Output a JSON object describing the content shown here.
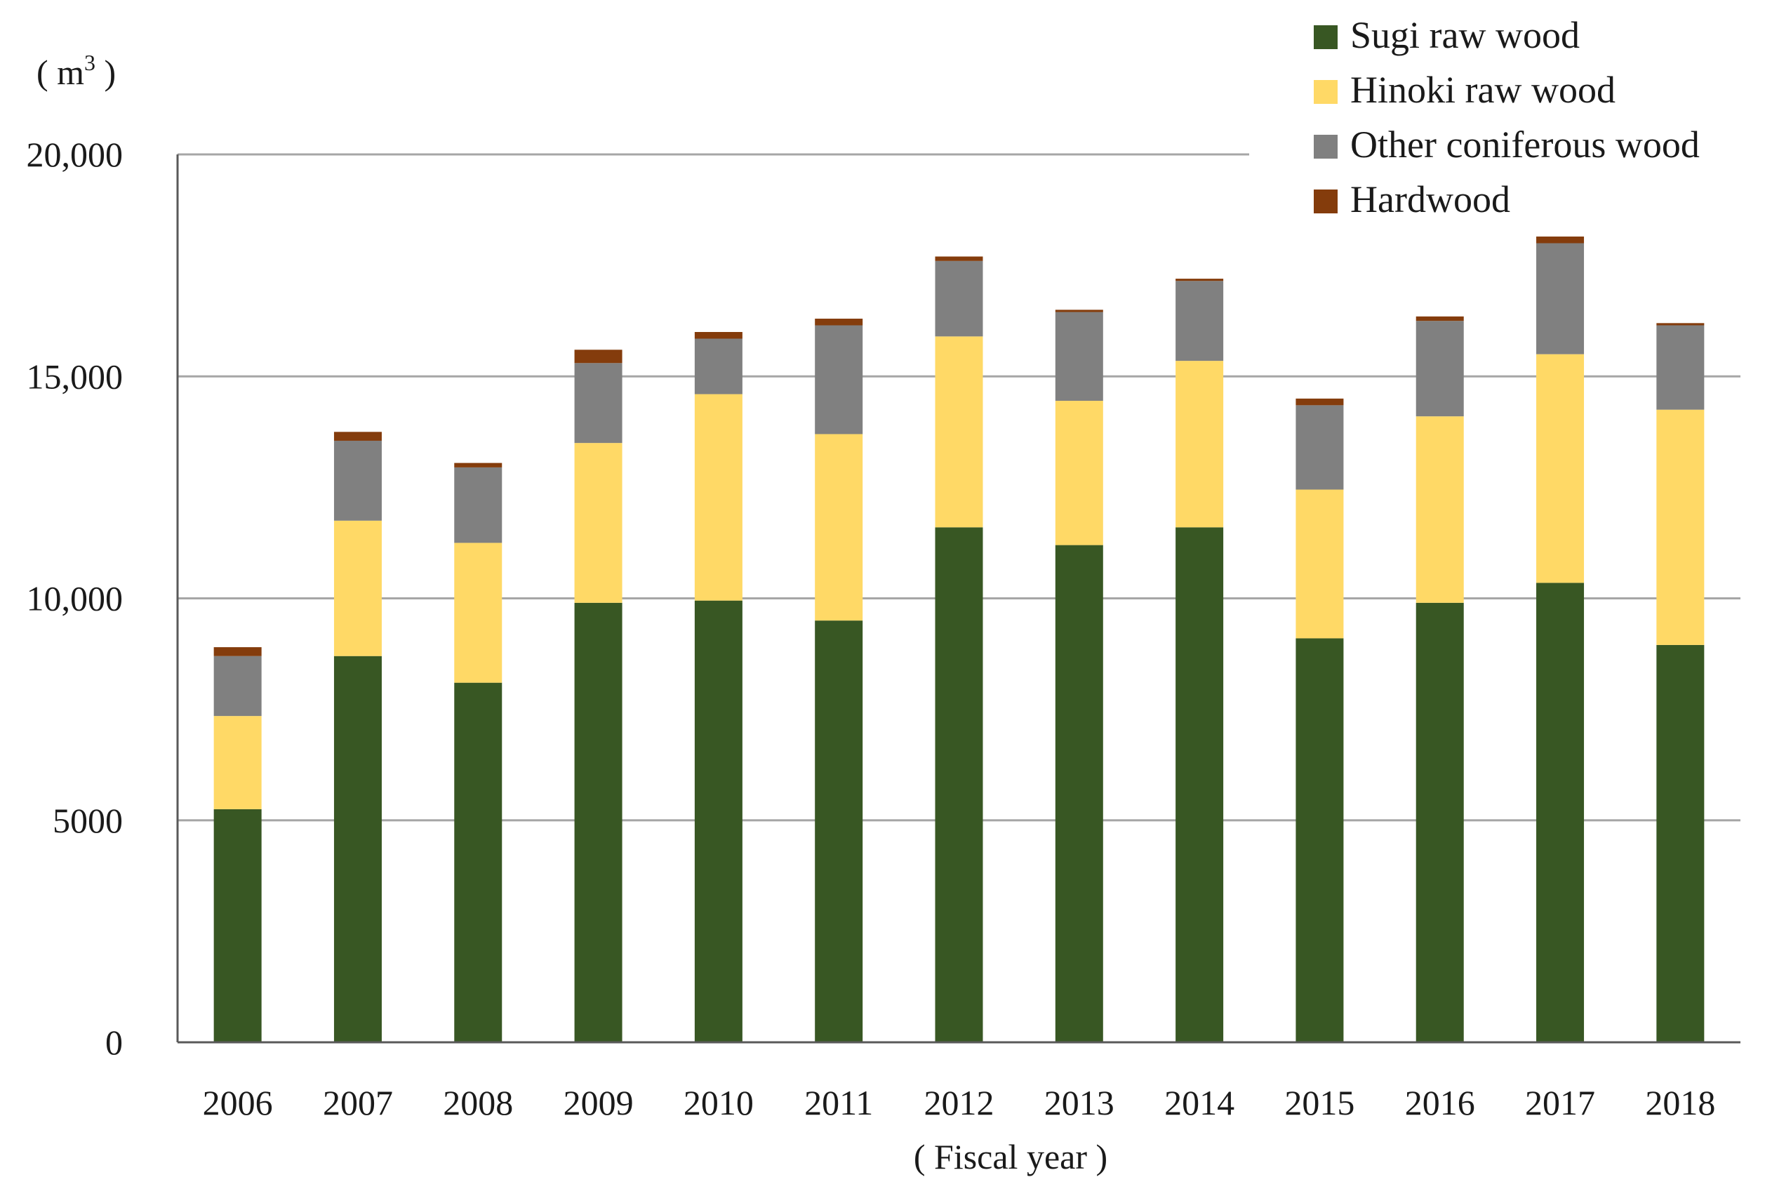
{
  "chart_data": {
    "type": "bar",
    "stacked": true,
    "title": "",
    "xlabel": "( Fiscal year )",
    "ylabel_main": "( m",
    "ylabel_sup": "3",
    "ylabel_close": " )",
    "ylim": [
      0,
      20000
    ],
    "yticks": [
      0,
      5000,
      10000,
      15000,
      20000
    ],
    "ytick_labels": [
      "0",
      "5000",
      "10,000",
      "15,000",
      "20,000"
    ],
    "grid": true,
    "legend_position": "top-right",
    "categories": [
      "2006",
      "2007",
      "2008",
      "2009",
      "2010",
      "2011",
      "2012",
      "2013",
      "2014",
      "2015",
      "2016",
      "2017",
      "2018"
    ],
    "series": [
      {
        "name": "Sugi raw wood",
        "color": "#385723",
        "values": [
          5250,
          8700,
          8100,
          9900,
          9950,
          9500,
          11600,
          11200,
          11600,
          9100,
          9900,
          10350,
          8950
        ]
      },
      {
        "name": "Hinoki raw wood",
        "color": "#FFD966",
        "values": [
          2100,
          3050,
          3150,
          3600,
          4650,
          4200,
          4300,
          3250,
          3750,
          3350,
          4200,
          5150,
          5300
        ]
      },
      {
        "name": "Other coniferous wood",
        "color": "#808080",
        "values": [
          1350,
          1800,
          1700,
          1800,
          1250,
          2450,
          1700,
          2000,
          1800,
          1900,
          2150,
          2500,
          1900
        ]
      },
      {
        "name": "Hardwood",
        "color": "#843C0C",
        "values": [
          200,
          200,
          100,
          300,
          150,
          150,
          100,
          50,
          50,
          150,
          100,
          150,
          50
        ]
      }
    ]
  }
}
